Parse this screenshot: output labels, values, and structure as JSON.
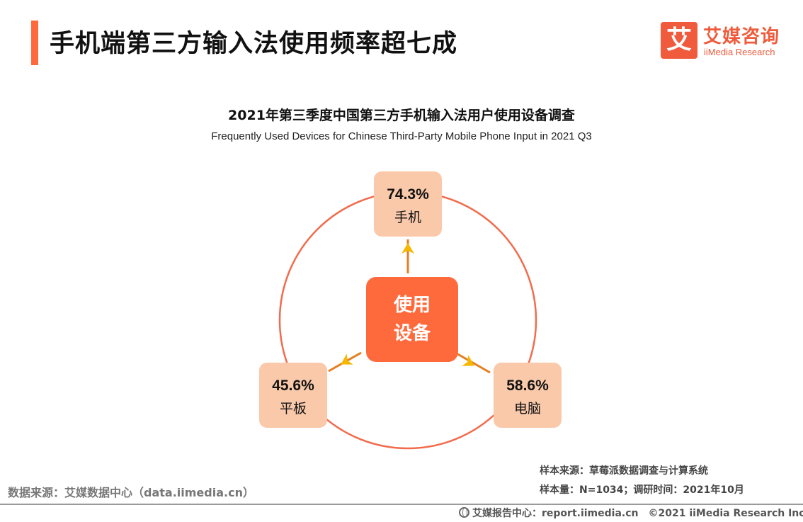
{
  "header": {
    "title": "手机端第三方输入法使用频率超七成"
  },
  "logo": {
    "mark": "艾",
    "cn": "艾媒咨询",
    "en": "iiMedia Research"
  },
  "chart_data": {
    "type": "radial-diagram",
    "title": "2021年第三季度中国第三方手机输入法用户使用设备调查",
    "subtitle": "Frequently Used Devices for Chinese Third-Party Mobile Phone Input in 2021 Q3",
    "center": [
      "使用",
      "设备"
    ],
    "unit": "%",
    "items": [
      {
        "label": "手机",
        "value": 74.3,
        "display": "74.3%",
        "direction": "top"
      },
      {
        "label": "平板",
        "value": 45.6,
        "display": "45.6%",
        "direction": "bottom-left"
      },
      {
        "label": "电脑",
        "value": 58.6,
        "display": "58.6%",
        "direction": "bottom-right"
      }
    ],
    "colors": {
      "center": "#ff6a3d",
      "ring": "#f26b4d",
      "box": "#f9c9aa",
      "connector": "#e67e22",
      "arrow": "#f5b800"
    }
  },
  "footer": {
    "source": "数据来源：艾媒数据中心（data.iimedia.cn）",
    "sample_source": "样本来源：草莓派数据调查与计算系统",
    "sample_info": "样本量：N=1034；调研时间：2021年10月",
    "report_center": "艾媒报告中心：report.iimedia.cn",
    "copyright": "©2021  iiMedia Research  Inc"
  }
}
